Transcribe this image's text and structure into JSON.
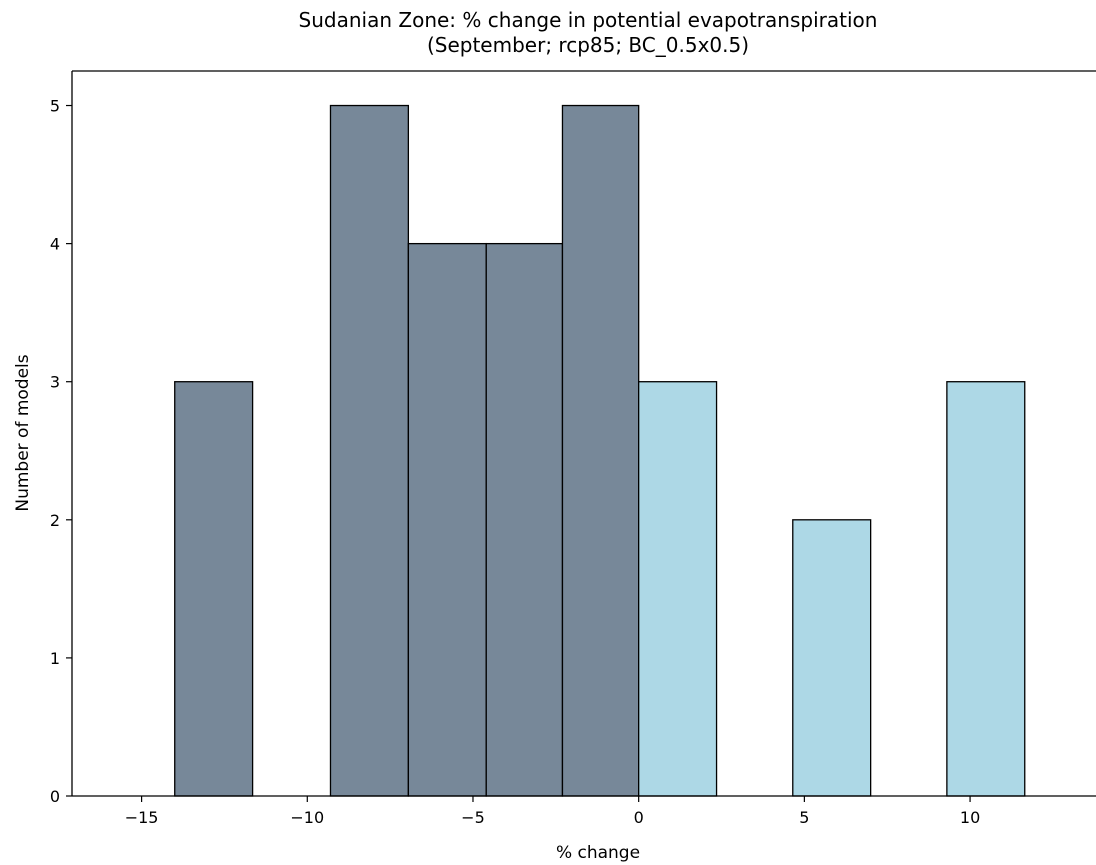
{
  "chart_data": {
    "type": "bar",
    "title_line1": "Sudanian Zone: % change in potential evapotranspiration",
    "title_line2": "(September; rcp85; BC_0.5x0.5)",
    "xlabel": "% change",
    "ylabel": "Number of models",
    "xlim": [
      -17.1,
      13.8
    ],
    "ylim": [
      0,
      5.25
    ],
    "xticks": [
      -15,
      -10,
      -5,
      0,
      5,
      10
    ],
    "xtick_labels": [
      "−15",
      "−10",
      "−5",
      "0",
      "5",
      "10"
    ],
    "yticks": [
      0,
      1,
      2,
      3,
      4,
      5
    ],
    "ytick_labels": [
      "0",
      "1",
      "2",
      "3",
      "4",
      "5"
    ],
    "grid": false,
    "colors": {
      "negative": "#778899",
      "positive": "#add8e6",
      "edge": "#000000"
    },
    "bins": [
      {
        "x0": -14.0,
        "x1": -11.65,
        "count": 3,
        "group": "negative"
      },
      {
        "x0": -9.3,
        "x1": -6.95,
        "count": 5,
        "group": "negative"
      },
      {
        "x0": -6.95,
        "x1": -4.6,
        "count": 4,
        "group": "negative"
      },
      {
        "x0": -4.6,
        "x1": -2.3,
        "count": 4,
        "group": "negative"
      },
      {
        "x0": -2.3,
        "x1": 0.0,
        "count": 5,
        "group": "negative"
      },
      {
        "x0": 0.0,
        "x1": 2.35,
        "count": 3,
        "group": "positive"
      },
      {
        "x0": 4.65,
        "x1": 7.0,
        "count": 2,
        "group": "positive"
      },
      {
        "x0": 9.3,
        "x1": 11.65,
        "count": 3,
        "group": "positive"
      }
    ]
  }
}
